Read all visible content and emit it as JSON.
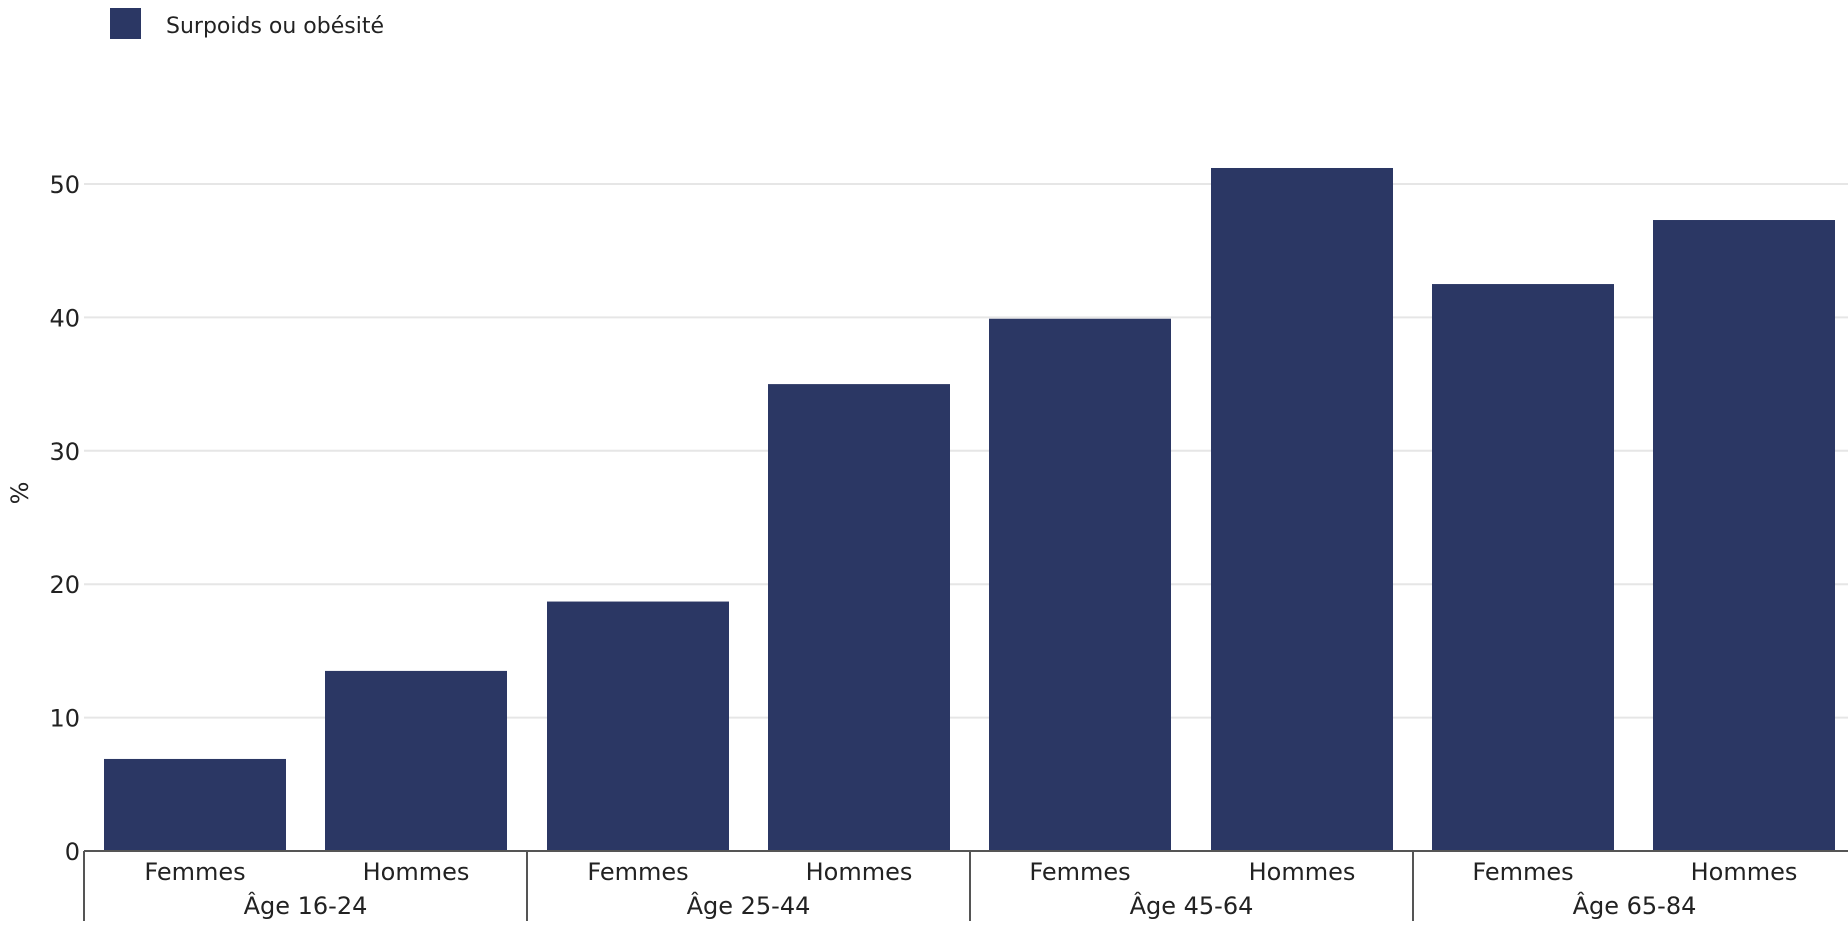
{
  "chart_data": {
    "type": "bar",
    "ylabel": "%",
    "ylim": [
      0,
      57
    ],
    "yticks": [
      0,
      10,
      20,
      30,
      40,
      50
    ],
    "grid": true,
    "legend_position": "top-left",
    "series": [
      {
        "name": "Surpoids ou obésité",
        "color": "#2b3764",
        "values": [
          6.9,
          13.5,
          18.7,
          35.0,
          39.9,
          51.2,
          42.5,
          47.3
        ]
      }
    ],
    "categories": [
      "Femmes",
      "Hommes",
      "Femmes",
      "Hommes",
      "Femmes",
      "Hommes",
      "Femmes",
      "Hommes"
    ],
    "groups": [
      {
        "label": "Âge 16-24",
        "size": 2
      },
      {
        "label": "Âge 25-44",
        "size": 2
      },
      {
        "label": "Âge 45-64",
        "size": 2
      },
      {
        "label": "Âge 65-84",
        "size": 2
      }
    ]
  }
}
